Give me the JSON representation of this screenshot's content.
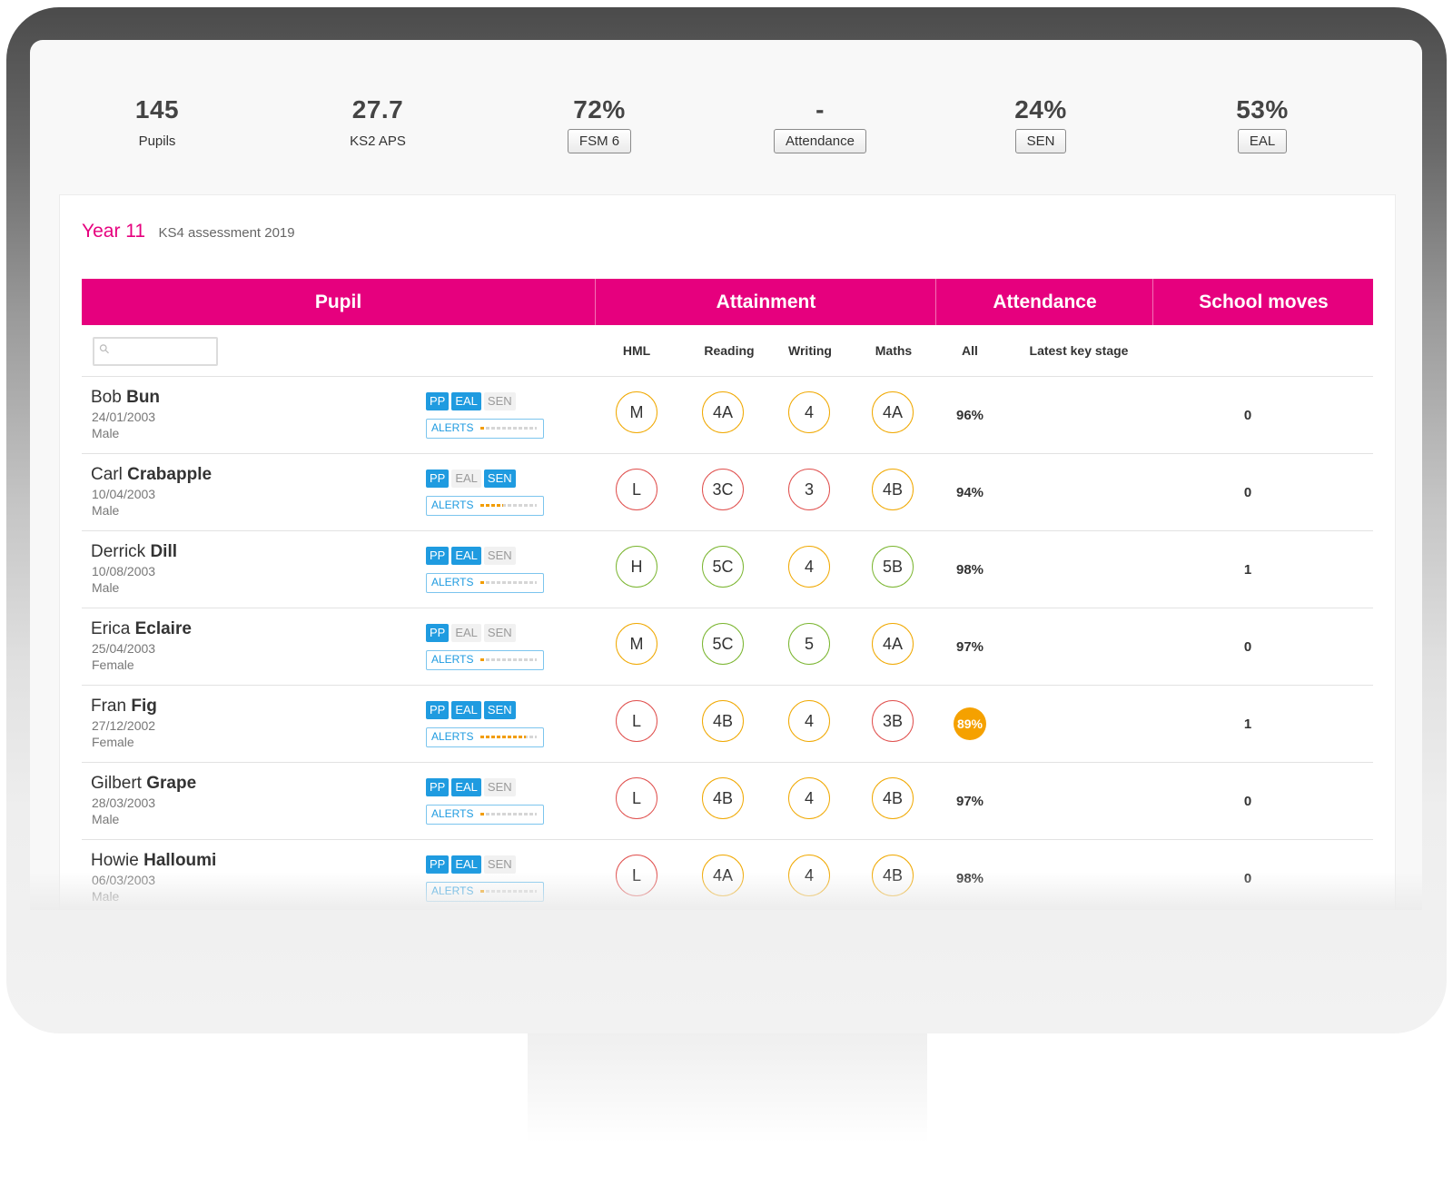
{
  "stats": [
    {
      "value": "145",
      "label": "Pupils"
    },
    {
      "value": "27.7",
      "label": "KS2 APS"
    },
    {
      "value": "72%",
      "label": "FSM 6"
    },
    {
      "value": "-",
      "label": "Attendance"
    },
    {
      "value": "24%",
      "label": "SEN"
    },
    {
      "value": "53%",
      "label": "EAL"
    }
  ],
  "card": {
    "title": "Year 11",
    "subtitle": "KS4 assessment 2019"
  },
  "table": {
    "groups": {
      "pupil": "Pupil",
      "attainment": "Attainment",
      "attendance": "Attendance",
      "moves": "School moves"
    },
    "subheaders": {
      "hml": "HML",
      "reading": "Reading",
      "writing": "Writing",
      "maths": "Maths",
      "all": "All",
      "latest": "Latest key stage"
    },
    "search": {
      "placeholder": ""
    },
    "tag_labels": {
      "pp": "PP",
      "eal": "EAL",
      "sen": "SEN"
    },
    "alerts_label": "ALERTS",
    "rows": [
      {
        "first": "Bob",
        "last": "Bun",
        "dob": "24/01/2003",
        "gender": "Male",
        "pp": true,
        "eal": true,
        "sen": false,
        "alerts_level": 0.1,
        "hml": "M",
        "hml_color": "amber",
        "reading": "4A",
        "reading_color": "amber",
        "writing": "4",
        "writing_color": "amber",
        "maths": "4A",
        "maths_color": "amber",
        "attendance": "96%",
        "attendance_alert": false,
        "moves": "0"
      },
      {
        "first": "Carl",
        "last": "Crabapple",
        "dob": "10/04/2003",
        "gender": "Male",
        "pp": true,
        "eal": false,
        "sen": true,
        "alerts_level": 0.4,
        "hml": "L",
        "hml_color": "red",
        "reading": "3C",
        "reading_color": "red",
        "writing": "3",
        "writing_color": "red",
        "maths": "4B",
        "maths_color": "amber",
        "attendance": "94%",
        "attendance_alert": false,
        "moves": "0"
      },
      {
        "first": "Derrick",
        "last": "Dill",
        "dob": "10/08/2003",
        "gender": "Male",
        "pp": true,
        "eal": true,
        "sen": false,
        "alerts_level": 0.1,
        "hml": "H",
        "hml_color": "green",
        "reading": "5C",
        "reading_color": "green",
        "writing": "4",
        "writing_color": "amber",
        "maths": "5B",
        "maths_color": "green",
        "attendance": "98%",
        "attendance_alert": false,
        "moves": "1"
      },
      {
        "first": "Erica",
        "last": "Eclaire",
        "dob": "25/04/2003",
        "gender": "Female",
        "pp": true,
        "eal": false,
        "sen": false,
        "alerts_level": 0.1,
        "hml": "M",
        "hml_color": "amber",
        "reading": "5C",
        "reading_color": "green",
        "writing": "5",
        "writing_color": "green",
        "maths": "4A",
        "maths_color": "amber",
        "attendance": "97%",
        "attendance_alert": false,
        "moves": "0"
      },
      {
        "first": "Fran",
        "last": "Fig",
        "dob": "27/12/2002",
        "gender": "Female",
        "pp": true,
        "eal": true,
        "sen": true,
        "alerts_level": 0.8,
        "hml": "L",
        "hml_color": "red",
        "reading": "4B",
        "reading_color": "amber",
        "writing": "4",
        "writing_color": "amber",
        "maths": "3B",
        "maths_color": "red",
        "attendance": "89%",
        "attendance_alert": true,
        "moves": "1"
      },
      {
        "first": "Gilbert",
        "last": "Grape",
        "dob": "28/03/2003",
        "gender": "Male",
        "pp": true,
        "eal": true,
        "sen": false,
        "alerts_level": 0.1,
        "hml": "L",
        "hml_color": "red",
        "reading": "4B",
        "reading_color": "amber",
        "writing": "4",
        "writing_color": "amber",
        "maths": "4B",
        "maths_color": "amber",
        "attendance": "97%",
        "attendance_alert": false,
        "moves": "0"
      },
      {
        "first": "Howie",
        "last": "Halloumi",
        "dob": "06/03/2003",
        "gender": "Male",
        "pp": true,
        "eal": true,
        "sen": false,
        "alerts_level": 0.1,
        "hml": "L",
        "hml_color": "red",
        "reading": "4A",
        "reading_color": "amber",
        "writing": "4",
        "writing_color": "amber",
        "maths": "4B",
        "maths_color": "amber",
        "attendance": "98%",
        "attendance_alert": false,
        "moves": "0"
      }
    ]
  },
  "colors": {
    "brand": "#e6007e",
    "tag_active": "#1f9be0",
    "grade_amber": "#f0a800",
    "grade_red": "#e0504e",
    "grade_green": "#7ab52f",
    "attendance_alert": "#f5a100"
  }
}
